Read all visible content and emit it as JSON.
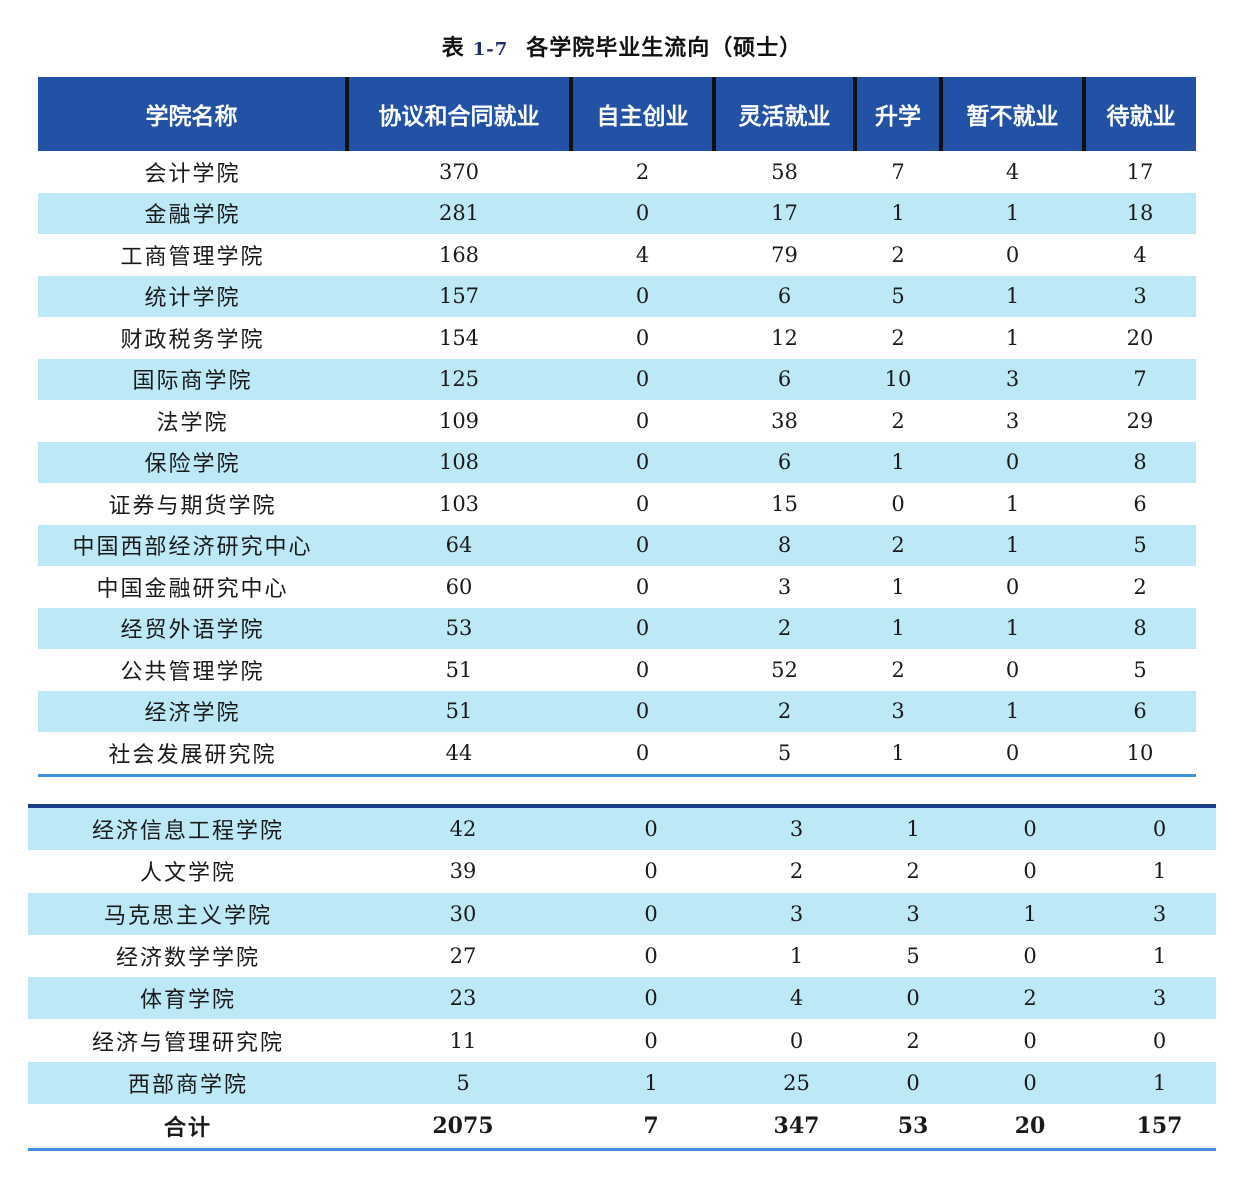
{
  "title": {
    "prefix": "表",
    "number": "1-7",
    "text": "各学院毕业生流向（硕士）"
  },
  "columns": [
    "学院名称",
    "协议和合同就业",
    "自主创业",
    "灵活就业",
    "升学",
    "暂不就业",
    "待就业"
  ],
  "colors": {
    "header_bg": "#2251a6",
    "header_text": "#ffffff",
    "alt_row_bg": "#bde9f7",
    "rule_line": "#3d8fd9",
    "divider": "#111111"
  },
  "upper_rows": [
    {
      "name": "会计学院",
      "values": [
        "370",
        "2",
        "58",
        "7",
        "4",
        "17"
      ]
    },
    {
      "name": "金融学院",
      "values": [
        "281",
        "0",
        "17",
        "1",
        "1",
        "18"
      ]
    },
    {
      "name": "工商管理学院",
      "values": [
        "168",
        "4",
        "79",
        "2",
        "0",
        "4"
      ]
    },
    {
      "name": "统计学院",
      "values": [
        "157",
        "0",
        "6",
        "5",
        "1",
        "3"
      ]
    },
    {
      "name": "财政税务学院",
      "values": [
        "154",
        "0",
        "12",
        "2",
        "1",
        "20"
      ]
    },
    {
      "name": "国际商学院",
      "values": [
        "125",
        "0",
        "6",
        "10",
        "3",
        "7"
      ]
    },
    {
      "name": "法学院",
      "values": [
        "109",
        "0",
        "38",
        "2",
        "3",
        "29"
      ]
    },
    {
      "name": "保险学院",
      "values": [
        "108",
        "0",
        "6",
        "1",
        "0",
        "8"
      ]
    },
    {
      "name": "证券与期货学院",
      "values": [
        "103",
        "0",
        "15",
        "0",
        "1",
        "6"
      ]
    },
    {
      "name": "中国西部经济研究中心",
      "values": [
        "64",
        "0",
        "8",
        "2",
        "1",
        "5"
      ]
    },
    {
      "name": "中国金融研究中心",
      "values": [
        "60",
        "0",
        "3",
        "1",
        "0",
        "2"
      ]
    },
    {
      "name": "经贸外语学院",
      "values": [
        "53",
        "0",
        "2",
        "1",
        "1",
        "8"
      ]
    },
    {
      "name": "公共管理学院",
      "values": [
        "51",
        "0",
        "52",
        "2",
        "0",
        "5"
      ]
    },
    {
      "name": "经济学院",
      "values": [
        "51",
        "0",
        "2",
        "3",
        "1",
        "6"
      ]
    },
    {
      "name": "社会发展研究院",
      "values": [
        "44",
        "0",
        "5",
        "1",
        "0",
        "10"
      ]
    }
  ],
  "lower_rows": [
    {
      "name": "经济信息工程学院",
      "values": [
        "42",
        "0",
        "3",
        "1",
        "0",
        "0"
      ]
    },
    {
      "name": "人文学院",
      "values": [
        "39",
        "0",
        "2",
        "2",
        "0",
        "1"
      ]
    },
    {
      "name": "马克思主义学院",
      "values": [
        "30",
        "0",
        "3",
        "3",
        "1",
        "3"
      ]
    },
    {
      "name": "经济数学学院",
      "values": [
        "27",
        "0",
        "1",
        "5",
        "0",
        "1"
      ]
    },
    {
      "name": "体育学院",
      "values": [
        "23",
        "0",
        "4",
        "0",
        "2",
        "3"
      ]
    },
    {
      "name": "经济与管理研究院",
      "values": [
        "11",
        "0",
        "0",
        "2",
        "0",
        "0"
      ]
    },
    {
      "name": "西部商学院",
      "values": [
        "5",
        "1",
        "25",
        "0",
        "0",
        "1"
      ]
    }
  ],
  "total": {
    "name": "合计",
    "values": [
      "2075",
      "7",
      "347",
      "53",
      "20",
      "157"
    ]
  }
}
